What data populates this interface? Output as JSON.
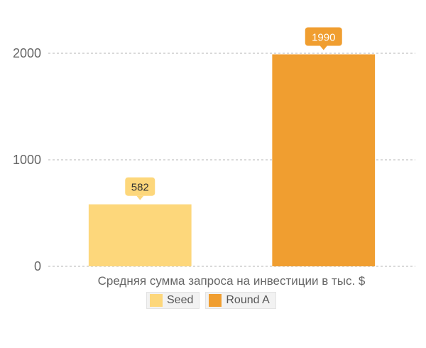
{
  "chart_data": {
    "type": "bar",
    "categories": [
      "Seed",
      "Round A"
    ],
    "series": [
      {
        "name": "Seed",
        "values": [
          582,
          null
        ],
        "color": "#fdd77b"
      },
      {
        "name": "Round A",
        "values": [
          null,
          1990
        ],
        "color": "#f09e30"
      }
    ],
    "data_labels": [
      "582",
      "1990"
    ],
    "xlabel": "Средняя сумма запроса на инвестиции в тыс. $",
    "ylabel": "",
    "ylim": [
      0,
      2000
    ],
    "yticks": [
      "0",
      "1000",
      "2000"
    ],
    "grid": true,
    "legend": "bottom-center"
  },
  "legend": {
    "items": [
      {
        "label": "Seed",
        "color": "#fdd77b"
      },
      {
        "label": "Round A",
        "color": "#f09e30"
      }
    ]
  }
}
